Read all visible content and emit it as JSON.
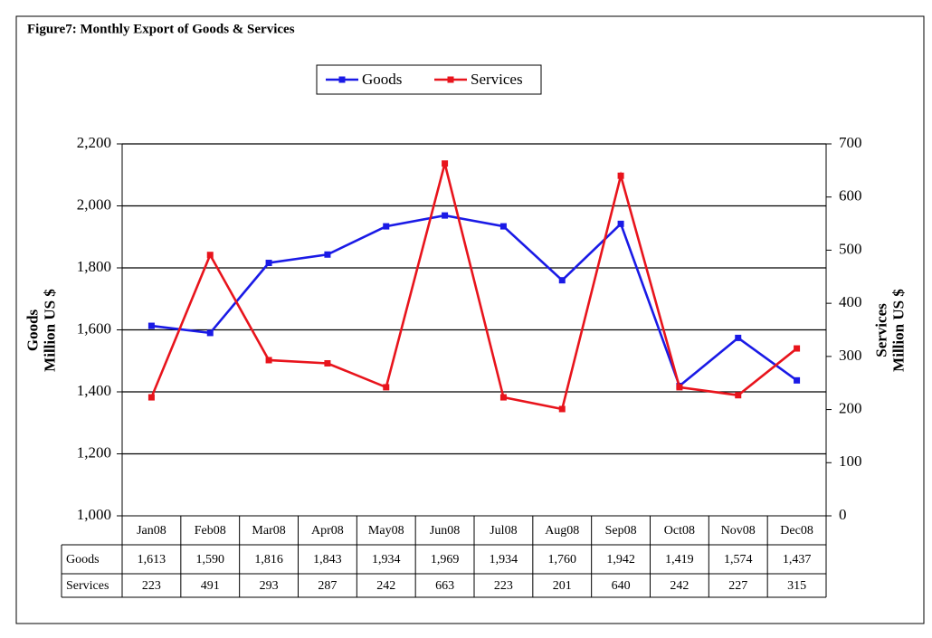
{
  "chart_data": {
    "type": "line",
    "title": "Figure7: Monthly Export of Goods & Services",
    "ylabel": [
      "Goods",
      "Million US $"
    ],
    "y2label": [
      "Services",
      "Million US $"
    ],
    "categories": [
      "Jan08",
      "Feb08",
      "Mar08",
      "Apr08",
      "May08",
      "Jun08",
      "Jul08",
      "Aug08",
      "Sep08",
      "Oct08",
      "Nov08",
      "Dec08"
    ],
    "series": [
      {
        "name": "Goods",
        "color": "#1a1ae6",
        "axis": "y",
        "values": [
          1613,
          1590,
          1816,
          1843,
          1934,
          1969,
          1934,
          1760,
          1942,
          1419,
          1574,
          1437
        ],
        "value_labels": [
          "1,613",
          "1,590",
          "1,816",
          "1,843",
          "1,934",
          "1,969",
          "1,934",
          "1,760",
          "1,942",
          "1,419",
          "1,574",
          "1,437"
        ]
      },
      {
        "name": "Services",
        "color": "#e8141c",
        "axis": "y2",
        "values": [
          223,
          491,
          293,
          287,
          242,
          663,
          223,
          201,
          640,
          242,
          227,
          315
        ]
      }
    ],
    "ylim": [
      1000,
      2200
    ],
    "yticks": [
      {
        "value": 1000,
        "label": "1,000"
      },
      {
        "value": 1200,
        "label": "1,200"
      },
      {
        "value": 1400,
        "label": "1,400"
      },
      {
        "value": 1600,
        "label": "1,600"
      },
      {
        "value": 1800,
        "label": "1,800"
      },
      {
        "value": 2000,
        "label": "2,000"
      },
      {
        "value": 2200,
        "label": "2,200"
      }
    ],
    "y2lim": [
      0,
      700
    ],
    "y2ticks": [
      0,
      100,
      200,
      300,
      400,
      500,
      600,
      700
    ],
    "grid": true,
    "legend": "top"
  }
}
